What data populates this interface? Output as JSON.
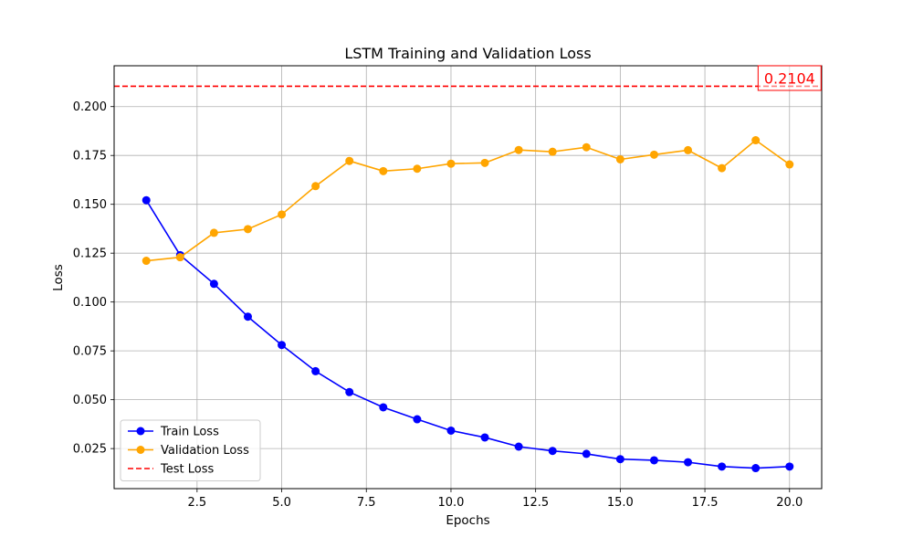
{
  "chart_data": {
    "type": "line",
    "title": "LSTM Training and Validation Loss",
    "xlabel": "Epochs",
    "ylabel": "Loss",
    "xlim": [
      0.05,
      20.95
    ],
    "ylim": [
      0.0045,
      0.2209
    ],
    "x_ticks": [
      2.5,
      5.0,
      7.5,
      10.0,
      12.5,
      15.0,
      17.5,
      20.0
    ],
    "x_tick_labels": [
      "2.5",
      "5.0",
      "7.5",
      "10.0",
      "12.5",
      "15.0",
      "17.5",
      "20.0"
    ],
    "y_ticks": [
      0.025,
      0.05,
      0.075,
      0.1,
      0.125,
      0.15,
      0.175,
      0.2
    ],
    "y_tick_labels": [
      "0.025",
      "0.050",
      "0.075",
      "0.100",
      "0.125",
      "0.150",
      "0.175",
      "0.200"
    ],
    "grid": true,
    "legend_position": "lower-left",
    "x": [
      1,
      2,
      3,
      4,
      5,
      6,
      7,
      8,
      9,
      10,
      11,
      12,
      13,
      14,
      15,
      16,
      17,
      18,
      19,
      20
    ],
    "series": [
      {
        "name": "Train Loss",
        "color": "#0000ff",
        "marker": "circle",
        "line_style": "solid",
        "values": [
          0.1521,
          0.124,
          0.1093,
          0.0925,
          0.078,
          0.0646,
          0.0539,
          0.0461,
          0.04,
          0.0342,
          0.0307,
          0.026,
          0.0238,
          0.0223,
          0.0196,
          0.019,
          0.018,
          0.0158,
          0.015,
          0.0158
        ]
      },
      {
        "name": "Validation Loss",
        "color": "#ffa500",
        "marker": "circle",
        "line_style": "solid",
        "values": [
          0.1211,
          0.1229,
          0.1354,
          0.1373,
          0.1448,
          0.1593,
          0.1722,
          0.167,
          0.1682,
          0.1708,
          0.1712,
          0.1778,
          0.1769,
          0.1792,
          0.173,
          0.1754,
          0.1777,
          0.1685,
          0.1828,
          0.1704
        ]
      }
    ],
    "reference_lines": [
      {
        "name": "Test Loss",
        "orientation": "horizontal",
        "value": 0.2104,
        "color": "#ff0000",
        "line_style": "dashed"
      }
    ],
    "annotations": [
      {
        "text": "0.2104",
        "x": 19.3,
        "y": 0.2104,
        "color": "#ff0000"
      }
    ]
  }
}
